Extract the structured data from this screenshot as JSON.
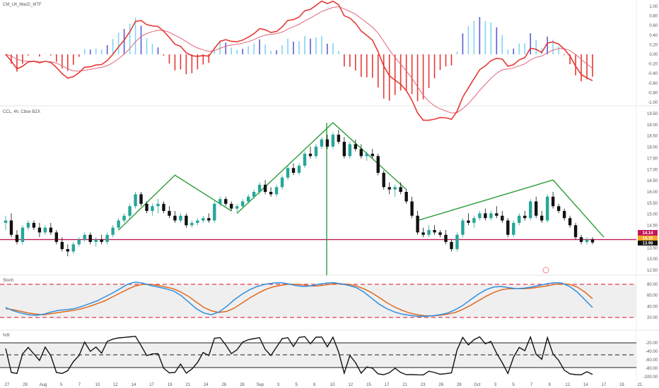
{
  "chart_data": {
    "type": "candlestick",
    "panes": {
      "macd": {
        "title": "CM_Ult_MacD_MTF",
        "y_ticks": [
          "1.00",
          "0.80",
          "0.60",
          "0.40",
          "0.20",
          "0.00",
          "-0.20",
          "-0.40",
          "-0.60",
          "-0.80",
          "-1.00"
        ]
      },
      "price": {
        "title": "CCL, 4h, Cboe BZX",
        "y_ticks": [
          "19.50",
          "19.00",
          "18.50",
          "18.00",
          "17.50",
          "17.00",
          "16.50",
          "16.00",
          "15.50",
          "15.00",
          "14.50",
          "14.00",
          "13.50",
          "13.00",
          "12.50"
        ],
        "support_level": 14.1,
        "last_price_label": "14.14",
        "second_price_label": "14.10",
        "third_price_label": "13.98"
      },
      "stoch": {
        "title": "Stoch",
        "y_ticks": [
          "80.00",
          "60.00",
          "40.00",
          "20.00"
        ]
      },
      "wr": {
        "title": "%R",
        "y_ticks": [
          "-20.00",
          "-40.00",
          "-60.00",
          "-80.00",
          "-100.00"
        ]
      }
    },
    "x_ticks": [
      "27",
      "29",
      "Aug",
      "5",
      "7",
      "10",
      "12",
      "14",
      "17",
      "19",
      "21",
      "24",
      "26",
      "28",
      "Sep",
      "3",
      "5",
      "8",
      "10",
      "12",
      "15",
      "17",
      "21",
      "23",
      "26",
      "28",
      "Oct",
      "3",
      "5",
      "7",
      "9",
      "12",
      "14",
      "17",
      "19",
      "21"
    ],
    "candles": [
      [
        14.8,
        15.1,
        14.5,
        14.9
      ],
      [
        14.9,
        15.2,
        14.2,
        14.3
      ],
      [
        14.3,
        14.5,
        13.9,
        14.0
      ],
      [
        14.0,
        14.7,
        13.9,
        14.6
      ],
      [
        14.6,
        14.9,
        14.5,
        14.8
      ],
      [
        14.8,
        14.9,
        14.5,
        14.6
      ],
      [
        14.6,
        14.8,
        14.2,
        14.4
      ],
      [
        14.4,
        14.7,
        14.3,
        14.6
      ],
      [
        14.6,
        14.8,
        14.3,
        14.4
      ],
      [
        14.4,
        14.5,
        13.9,
        14.0
      ],
      [
        14.0,
        14.2,
        13.6,
        13.7
      ],
      [
        13.7,
        13.9,
        13.4,
        13.6
      ],
      [
        13.6,
        14.0,
        13.5,
        13.9
      ],
      [
        13.9,
        14.2,
        13.8,
        14.1
      ],
      [
        14.1,
        14.4,
        14.0,
        14.3
      ],
      [
        14.3,
        14.4,
        13.9,
        14.0
      ],
      [
        14.0,
        14.2,
        13.8,
        14.1
      ],
      [
        14.1,
        14.3,
        13.9,
        14.0
      ],
      [
        14.0,
        14.4,
        13.9,
        14.3
      ],
      [
        14.3,
        14.7,
        14.2,
        14.6
      ],
      [
        14.6,
        15.0,
        14.5,
        14.9
      ],
      [
        14.9,
        15.2,
        14.8,
        15.1
      ],
      [
        15.1,
        15.6,
        15.0,
        15.5
      ],
      [
        15.5,
        16.1,
        15.4,
        16.0
      ],
      [
        16.0,
        16.1,
        15.5,
        15.6
      ],
      [
        15.6,
        15.7,
        15.2,
        15.3
      ],
      [
        15.3,
        15.6,
        15.1,
        15.5
      ],
      [
        15.5,
        15.8,
        15.2,
        15.6
      ],
      [
        15.6,
        15.7,
        15.2,
        15.3
      ],
      [
        15.3,
        15.5,
        15.0,
        15.1
      ],
      [
        15.1,
        15.3,
        14.8,
        14.9
      ],
      [
        14.9,
        15.2,
        14.8,
        15.1
      ],
      [
        15.1,
        15.2,
        14.6,
        14.7
      ],
      [
        14.7,
        14.9,
        14.6,
        14.8
      ],
      [
        14.8,
        15.0,
        14.7,
        14.9
      ],
      [
        14.9,
        15.1,
        14.8,
        15.0
      ],
      [
        15.0,
        15.2,
        14.8,
        14.9
      ],
      [
        14.9,
        15.7,
        14.8,
        15.6
      ],
      [
        15.6,
        15.9,
        15.5,
        15.8
      ],
      [
        15.8,
        15.9,
        15.5,
        15.6
      ],
      [
        15.6,
        15.7,
        15.3,
        15.4
      ],
      [
        15.4,
        15.6,
        15.2,
        15.5
      ],
      [
        15.5,
        15.8,
        15.4,
        15.7
      ],
      [
        15.7,
        16.0,
        15.6,
        15.9
      ],
      [
        15.9,
        16.2,
        15.8,
        16.1
      ],
      [
        16.1,
        16.5,
        16.0,
        16.4
      ],
      [
        16.4,
        16.6,
        16.0,
        16.1
      ],
      [
        16.1,
        16.3,
        15.9,
        16.0
      ],
      [
        16.0,
        16.4,
        15.9,
        16.3
      ],
      [
        16.3,
        16.8,
        16.2,
        16.7
      ],
      [
        16.7,
        17.2,
        16.6,
        17.1
      ],
      [
        17.1,
        17.3,
        16.8,
        16.9
      ],
      [
        16.9,
        17.3,
        16.8,
        17.2
      ],
      [
        17.2,
        17.8,
        17.1,
        17.7
      ],
      [
        17.7,
        18.0,
        17.5,
        17.6
      ],
      [
        17.6,
        18.1,
        17.5,
        18.0
      ],
      [
        18.0,
        18.4,
        17.9,
        18.3
      ],
      [
        18.3,
        18.5,
        17.9,
        18.0
      ],
      [
        18.0,
        18.6,
        17.9,
        18.5
      ],
      [
        18.5,
        18.7,
        18.1,
        18.2
      ],
      [
        18.2,
        18.4,
        17.5,
        17.6
      ],
      [
        17.6,
        18.2,
        17.5,
        18.1
      ],
      [
        18.1,
        18.3,
        17.8,
        17.9
      ],
      [
        17.9,
        18.1,
        17.5,
        17.6
      ],
      [
        17.6,
        17.8,
        17.4,
        17.7
      ],
      [
        17.7,
        17.9,
        17.5,
        17.6
      ],
      [
        17.6,
        17.7,
        16.8,
        16.9
      ],
      [
        16.9,
        17.0,
        16.2,
        16.3
      ],
      [
        16.3,
        16.5,
        16.0,
        16.2
      ],
      [
        16.2,
        16.4,
        15.9,
        16.3
      ],
      [
        16.3,
        16.5,
        16.0,
        16.1
      ],
      [
        16.1,
        16.2,
        15.6,
        15.7
      ],
      [
        15.7,
        15.9,
        15.0,
        15.1
      ],
      [
        15.1,
        15.3,
        14.3,
        14.4
      ],
      [
        14.4,
        14.6,
        14.2,
        14.3
      ],
      [
        14.3,
        14.7,
        14.2,
        14.5
      ],
      [
        14.5,
        14.7,
        14.3,
        14.4
      ],
      [
        14.4,
        14.5,
        14.2,
        14.3
      ],
      [
        14.3,
        14.5,
        13.9,
        14.0
      ],
      [
        14.0,
        14.1,
        13.6,
        13.7
      ],
      [
        13.7,
        14.4,
        13.6,
        14.3
      ],
      [
        14.3,
        15.0,
        14.2,
        14.9
      ],
      [
        14.9,
        15.2,
        14.7,
        14.8
      ],
      [
        14.8,
        15.1,
        14.6,
        15.0
      ],
      [
        15.0,
        15.3,
        14.9,
        15.2
      ],
      [
        15.2,
        15.4,
        14.9,
        15.0
      ],
      [
        15.0,
        15.3,
        14.9,
        15.2
      ],
      [
        15.2,
        15.5,
        15.0,
        15.1
      ],
      [
        15.1,
        15.3,
        14.8,
        14.9
      ],
      [
        14.9,
        15.0,
        14.2,
        14.3
      ],
      [
        14.3,
        14.9,
        14.2,
        14.8
      ],
      [
        14.8,
        15.2,
        14.7,
        15.1
      ],
      [
        15.1,
        15.3,
        14.9,
        15.0
      ],
      [
        15.0,
        15.8,
        14.9,
        15.7
      ],
      [
        15.7,
        15.9,
        15.0,
        15.1
      ],
      [
        15.1,
        15.3,
        14.8,
        14.9
      ],
      [
        14.9,
        16.0,
        14.8,
        15.9
      ],
      [
        15.9,
        16.1,
        15.4,
        15.5
      ],
      [
        15.5,
        15.6,
        15.2,
        15.3
      ],
      [
        15.3,
        15.4,
        14.9,
        15.0
      ],
      [
        15.0,
        15.1,
        14.6,
        14.7
      ],
      [
        14.7,
        14.8,
        14.1,
        14.2
      ],
      [
        14.2,
        14.3,
        13.9,
        14.0
      ],
      [
        14.0,
        14.2,
        13.9,
        14.1
      ],
      [
        14.1,
        14.2,
        13.9,
        13.98
      ]
    ],
    "patterns": [
      {
        "name": "hs-left",
        "points": [
          [
            20,
            14.5
          ],
          [
            30,
            16.8
          ],
          [
            40,
            15.3
          ]
        ]
      },
      {
        "name": "hs-head",
        "points": [
          [
            41,
            15.2
          ],
          [
            58,
            19.0
          ],
          [
            71,
            16.2
          ]
        ]
      },
      {
        "name": "hs-right",
        "points": [
          [
            73,
            14.9
          ],
          [
            97,
            16.6
          ],
          [
            106,
            14.2
          ]
        ]
      }
    ],
    "stoch_k": [
      38,
      32,
      28,
      25,
      24,
      26,
      30,
      33,
      34,
      36,
      40,
      45,
      50,
      57,
      64,
      72,
      80,
      84,
      82,
      78,
      75,
      72,
      68,
      60,
      48,
      36,
      28,
      25,
      30,
      40,
      52,
      62,
      70,
      76,
      80,
      82,
      83,
      81,
      78,
      76,
      77,
      80,
      82,
      83,
      81,
      78,
      74,
      66,
      55,
      44,
      36,
      30,
      26,
      24,
      22,
      22,
      23,
      25,
      28,
      34,
      42,
      52,
      62,
      70,
      75,
      76,
      74,
      72,
      73,
      75,
      78,
      81,
      83,
      82,
      76,
      66,
      52,
      38
    ],
    "stoch_d": [
      36,
      34,
      31,
      28,
      26,
      25,
      27,
      29,
      31,
      33,
      36,
      40,
      45,
      50,
      57,
      64,
      71,
      77,
      80,
      80,
      78,
      75,
      72,
      66,
      58,
      48,
      38,
      32,
      29,
      31,
      37,
      46,
      55,
      63,
      70,
      75,
      78,
      80,
      80,
      79,
      77,
      77,
      79,
      81,
      81,
      80,
      77,
      72,
      65,
      56,
      47,
      39,
      33,
      28,
      25,
      23,
      23,
      24,
      26,
      29,
      35,
      42,
      50,
      58,
      65,
      70,
      72,
      72,
      72,
      73,
      75,
      77,
      80,
      81,
      80,
      75,
      66,
      54
    ]
  }
}
